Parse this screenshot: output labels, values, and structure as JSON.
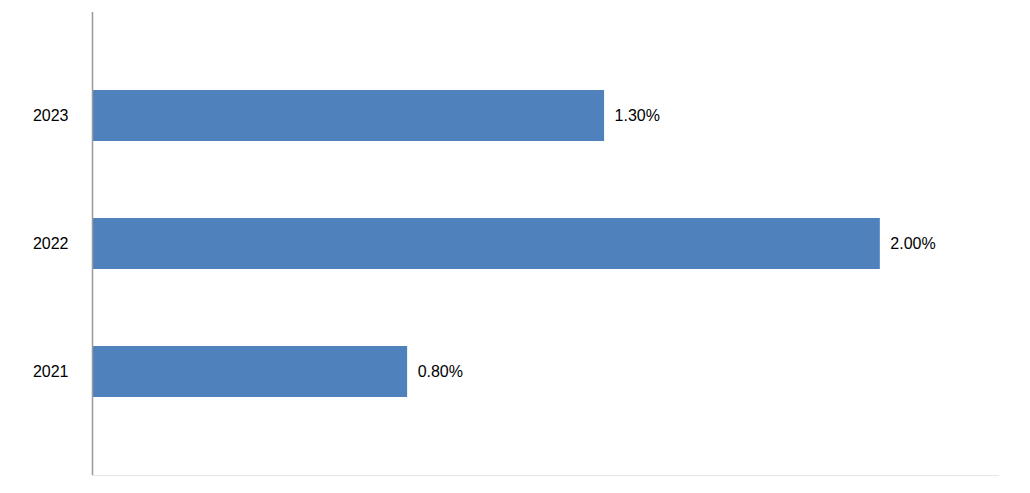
{
  "chart_data": {
    "type": "bar",
    "orientation": "horizontal",
    "categories": [
      "2023",
      "2022",
      "2021"
    ],
    "values": [
      1.3,
      2.0,
      0.8
    ],
    "value_labels": [
      "1.30%",
      "2.00%",
      "0.80%"
    ],
    "color": "#4f81bd",
    "xlim": [
      0,
      2.3
    ],
    "data_labels": true,
    "tick_labels": "y"
  }
}
